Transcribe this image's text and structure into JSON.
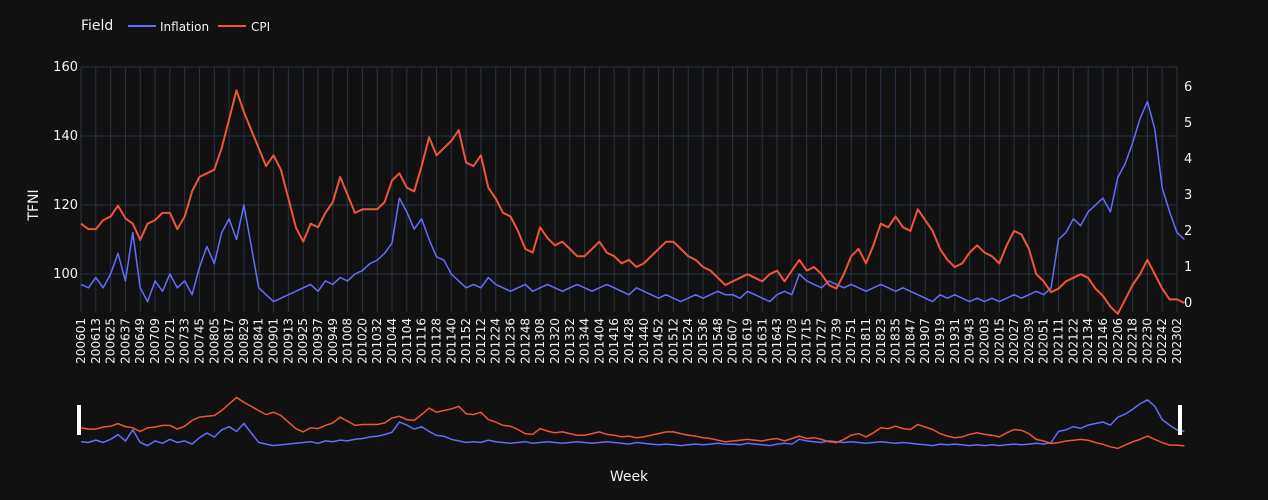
{
  "chart_data": {
    "type": "line",
    "legend": {
      "title": "Field",
      "position": "top-left",
      "orientation": "horizontal"
    },
    "xlabel": "Week",
    "ylabel": "TFNI",
    "y2label": "",
    "ylim": [
      89,
      160
    ],
    "y2lim": [
      -0.25,
      6.55
    ],
    "yticks": [
      100,
      120,
      140,
      160
    ],
    "y2ticks": [
      0,
      1,
      2,
      3,
      4,
      5,
      6
    ],
    "grid": true,
    "rangeslider": true,
    "x_categories": [
      "200601",
      "200613",
      "200625",
      "200637",
      "200649",
      "200709",
      "200721",
      "200733",
      "200745",
      "200805",
      "200817",
      "200829",
      "200841",
      "200901",
      "200913",
      "200925",
      "200937",
      "200949",
      "201008",
      "201020",
      "201032",
      "201044",
      "201104",
      "201116",
      "201128",
      "201140",
      "201152",
      "201212",
      "201224",
      "201236",
      "201248",
      "201308",
      "201320",
      "201332",
      "201344",
      "201404",
      "201416",
      "201428",
      "201440",
      "201452",
      "201512",
      "201524",
      "201536",
      "201548",
      "201607",
      "201619",
      "201631",
      "201643",
      "201703",
      "201715",
      "201727",
      "201739",
      "201751",
      "201811",
      "201823",
      "201835",
      "201847",
      "201907",
      "201919",
      "201931",
      "201943",
      "202003",
      "202015",
      "202027",
      "202039",
      "202051",
      "202111",
      "202122",
      "202134",
      "202146",
      "202206",
      "202218",
      "202230",
      "202242",
      "202302"
    ],
    "series": [
      {
        "name": "Inflation",
        "color": "#636efa",
        "axis": "y",
        "description": "Weekly TFNI, noisy series",
        "points": [
          [
            0,
            97
          ],
          [
            0.5,
            96
          ],
          [
            1,
            99
          ],
          [
            1.5,
            96
          ],
          [
            2,
            100
          ],
          [
            2.5,
            106
          ],
          [
            3,
            98
          ],
          [
            3.5,
            112
          ],
          [
            4,
            96
          ],
          [
            4.5,
            92
          ],
          [
            5,
            98
          ],
          [
            5.5,
            95
          ],
          [
            6,
            100
          ],
          [
            6.5,
            96
          ],
          [
            7,
            98
          ],
          [
            7.5,
            94
          ],
          [
            8,
            102
          ],
          [
            8.5,
            108
          ],
          [
            9,
            103
          ],
          [
            9.5,
            112
          ],
          [
            10,
            116
          ],
          [
            10.5,
            110
          ],
          [
            11,
            120
          ],
          [
            11.5,
            108
          ],
          [
            12,
            96
          ],
          [
            12.5,
            94
          ],
          [
            13,
            92
          ],
          [
            13.5,
            93
          ],
          [
            14,
            94
          ],
          [
            14.5,
            95
          ],
          [
            15,
            96
          ],
          [
            15.5,
            97
          ],
          [
            16,
            95
          ],
          [
            16.5,
            98
          ],
          [
            17,
            97
          ],
          [
            17.5,
            99
          ],
          [
            18,
            98
          ],
          [
            18.5,
            100
          ],
          [
            19,
            101
          ],
          [
            19.5,
            103
          ],
          [
            20,
            104
          ],
          [
            20.5,
            106
          ],
          [
            21,
            109
          ],
          [
            21.5,
            122
          ],
          [
            22,
            118
          ],
          [
            22.5,
            113
          ],
          [
            23,
            116
          ],
          [
            23.5,
            110
          ],
          [
            24,
            105
          ],
          [
            24.5,
            104
          ],
          [
            25,
            100
          ],
          [
            25.5,
            98
          ],
          [
            26,
            96
          ],
          [
            26.5,
            97
          ],
          [
            27,
            96
          ],
          [
            27.5,
            99
          ],
          [
            28,
            97
          ],
          [
            28.5,
            96
          ],
          [
            29,
            95
          ],
          [
            29.5,
            96
          ],
          [
            30,
            97
          ],
          [
            30.5,
            95
          ],
          [
            31,
            96
          ],
          [
            31.5,
            97
          ],
          [
            32,
            96
          ],
          [
            32.5,
            95
          ],
          [
            33,
            96
          ],
          [
            33.5,
            97
          ],
          [
            34,
            96
          ],
          [
            34.5,
            95
          ],
          [
            35,
            96
          ],
          [
            35.5,
            97
          ],
          [
            36,
            96
          ],
          [
            36.5,
            95
          ],
          [
            37,
            94
          ],
          [
            37.5,
            96
          ],
          [
            38,
            95
          ],
          [
            38.5,
            94
          ],
          [
            39,
            93
          ],
          [
            39.5,
            94
          ],
          [
            40,
            93
          ],
          [
            40.5,
            92
          ],
          [
            41,
            93
          ],
          [
            41.5,
            94
          ],
          [
            42,
            93
          ],
          [
            42.5,
            94
          ],
          [
            43,
            95
          ],
          [
            43.5,
            94
          ],
          [
            44,
            94
          ],
          [
            44.5,
            93
          ],
          [
            45,
            95
          ],
          [
            45.5,
            94
          ],
          [
            46,
            93
          ],
          [
            46.5,
            92
          ],
          [
            47,
            94
          ],
          [
            47.5,
            95
          ],
          [
            48,
            94
          ],
          [
            48.5,
            100
          ],
          [
            49,
            98
          ],
          [
            49.5,
            97
          ],
          [
            50,
            96
          ],
          [
            50.5,
            98
          ],
          [
            51,
            97
          ],
          [
            51.5,
            96
          ],
          [
            52,
            97
          ],
          [
            52.5,
            96
          ],
          [
            53,
            95
          ],
          [
            53.5,
            96
          ],
          [
            54,
            97
          ],
          [
            54.5,
            96
          ],
          [
            55,
            95
          ],
          [
            55.5,
            96
          ],
          [
            56,
            95
          ],
          [
            56.5,
            94
          ],
          [
            57,
            93
          ],
          [
            57.5,
            92
          ],
          [
            58,
            94
          ],
          [
            58.5,
            93
          ],
          [
            59,
            94
          ],
          [
            59.5,
            93
          ],
          [
            60,
            92
          ],
          [
            60.5,
            93
          ],
          [
            61,
            92
          ],
          [
            61.5,
            93
          ],
          [
            62,
            92
          ],
          [
            62.5,
            93
          ],
          [
            63,
            94
          ],
          [
            63.5,
            93
          ],
          [
            64,
            94
          ],
          [
            64.5,
            95
          ],
          [
            65,
            94
          ],
          [
            65.5,
            96
          ],
          [
            66,
            110
          ],
          [
            66.5,
            112
          ],
          [
            67,
            116
          ],
          [
            67.5,
            114
          ],
          [
            68,
            118
          ],
          [
            68.5,
            120
          ],
          [
            69,
            122
          ],
          [
            69.5,
            118
          ],
          [
            70,
            128
          ],
          [
            70.5,
            132
          ],
          [
            71,
            138
          ],
          [
            71.5,
            145
          ],
          [
            72,
            150
          ],
          [
            72.5,
            142
          ],
          [
            73,
            125
          ],
          [
            73.5,
            118
          ],
          [
            74,
            112
          ],
          [
            74.5,
            110
          ]
        ]
      },
      {
        "name": "CPI",
        "color": "#ef553b",
        "axis": "y2",
        "description": "CPI on right axis",
        "points": [
          [
            0,
            2.2
          ],
          [
            0.5,
            2.05
          ],
          [
            1,
            2.05
          ],
          [
            1.5,
            2.3
          ],
          [
            2,
            2.4
          ],
          [
            2.5,
            2.7
          ],
          [
            3,
            2.35
          ],
          [
            3.5,
            2.2
          ],
          [
            4,
            1.75
          ],
          [
            4.5,
            2.2
          ],
          [
            5,
            2.3
          ],
          [
            5.5,
            2.5
          ],
          [
            6,
            2.5
          ],
          [
            6.5,
            2.05
          ],
          [
            7,
            2.4
          ],
          [
            7.5,
            3.1
          ],
          [
            8,
            3.5
          ],
          [
            8.5,
            3.6
          ],
          [
            9,
            3.7
          ],
          [
            9.5,
            4.3
          ],
          [
            10,
            5.1
          ],
          [
            10.5,
            5.9
          ],
          [
            11,
            5.3
          ],
          [
            11.5,
            4.8
          ],
          [
            12,
            4.3
          ],
          [
            12.5,
            3.8
          ],
          [
            13,
            4.1
          ],
          [
            13.5,
            3.7
          ],
          [
            14,
            2.9
          ],
          [
            14.5,
            2.1
          ],
          [
            15,
            1.7
          ],
          [
            15.5,
            2.2
          ],
          [
            16,
            2.1
          ],
          [
            16.5,
            2.5
          ],
          [
            17,
            2.8
          ],
          [
            17.5,
            3.5
          ],
          [
            18,
            3.0
          ],
          [
            18.5,
            2.5
          ],
          [
            19,
            2.6
          ],
          [
            19.5,
            2.6
          ],
          [
            20,
            2.6
          ],
          [
            20.5,
            2.8
          ],
          [
            21,
            3.4
          ],
          [
            21.5,
            3.6
          ],
          [
            22,
            3.2
          ],
          [
            22.5,
            3.1
          ],
          [
            23,
            3.8
          ],
          [
            23.5,
            4.6
          ],
          [
            24,
            4.1
          ],
          [
            24.5,
            4.3
          ],
          [
            25,
            4.5
          ],
          [
            25.5,
            4.8
          ],
          [
            26,
            3.9
          ],
          [
            26.5,
            3.8
          ],
          [
            27,
            4.1
          ],
          [
            27.5,
            3.2
          ],
          [
            28,
            2.9
          ],
          [
            28.5,
            2.5
          ],
          [
            29,
            2.4
          ],
          [
            29.5,
            2.0
          ],
          [
            30,
            1.5
          ],
          [
            30.5,
            1.4
          ],
          [
            31,
            2.1
          ],
          [
            31.5,
            1.8
          ],
          [
            32,
            1.6
          ],
          [
            32.5,
            1.7
          ],
          [
            33,
            1.5
          ],
          [
            33.5,
            1.3
          ],
          [
            34,
            1.3
          ],
          [
            34.5,
            1.5
          ],
          [
            35,
            1.7
          ],
          [
            35.5,
            1.4
          ],
          [
            36,
            1.3
          ],
          [
            36.5,
            1.1
          ],
          [
            37,
            1.2
          ],
          [
            37.5,
            1.0
          ],
          [
            38,
            1.1
          ],
          [
            38.5,
            1.3
          ],
          [
            39,
            1.5
          ],
          [
            39.5,
            1.7
          ],
          [
            40,
            1.7
          ],
          [
            40.5,
            1.5
          ],
          [
            41,
            1.3
          ],
          [
            41.5,
            1.2
          ],
          [
            42,
            1.0
          ],
          [
            42.5,
            0.9
          ],
          [
            43,
            0.7
          ],
          [
            43.5,
            0.5
          ],
          [
            44,
            0.6
          ],
          [
            44.5,
            0.7
          ],
          [
            45,
            0.8
          ],
          [
            45.5,
            0.7
          ],
          [
            46,
            0.6
          ],
          [
            46.5,
            0.8
          ],
          [
            47,
            0.9
          ],
          [
            47.5,
            0.6
          ],
          [
            48,
            0.9
          ],
          [
            48.5,
            1.2
          ],
          [
            49,
            0.9
          ],
          [
            49.5,
            1.0
          ],
          [
            50,
            0.8
          ],
          [
            50.5,
            0.5
          ],
          [
            51,
            0.4
          ],
          [
            51.5,
            0.8
          ],
          [
            52,
            1.3
          ],
          [
            52.5,
            1.5
          ],
          [
            53,
            1.1
          ],
          [
            53.5,
            1.6
          ],
          [
            54,
            2.2
          ],
          [
            54.5,
            2.1
          ],
          [
            55,
            2.4
          ],
          [
            55.5,
            2.1
          ],
          [
            56,
            2.0
          ],
          [
            56.5,
            2.6
          ],
          [
            57,
            2.3
          ],
          [
            57.5,
            2.0
          ],
          [
            58,
            1.5
          ],
          [
            58.5,
            1.2
          ],
          [
            59,
            1.0
          ],
          [
            59.5,
            1.1
          ],
          [
            60,
            1.4
          ],
          [
            60.5,
            1.6
          ],
          [
            61,
            1.4
          ],
          [
            61.5,
            1.3
          ],
          [
            62,
            1.1
          ],
          [
            62.5,
            1.6
          ],
          [
            63,
            2.0
          ],
          [
            63.5,
            1.9
          ],
          [
            64,
            1.5
          ],
          [
            64.5,
            0.8
          ],
          [
            65,
            0.6
          ],
          [
            65.5,
            0.3
          ],
          [
            66,
            0.4
          ],
          [
            66.5,
            0.6
          ],
          [
            67,
            0.7
          ],
          [
            67.5,
            0.8
          ],
          [
            68,
            0.7
          ],
          [
            68.5,
            0.4
          ],
          [
            69,
            0.2
          ],
          [
            69.5,
            -0.1
          ],
          [
            70,
            -0.3
          ],
          [
            70.5,
            0.1
          ],
          [
            71,
            0.5
          ],
          [
            71.5,
            0.8
          ],
          [
            72,
            1.2
          ],
          [
            72.5,
            0.8
          ],
          [
            73,
            0.4
          ],
          [
            73.5,
            0.1
          ],
          [
            74,
            0.1
          ],
          [
            74.5,
            0.0
          ]
        ]
      }
    ]
  }
}
